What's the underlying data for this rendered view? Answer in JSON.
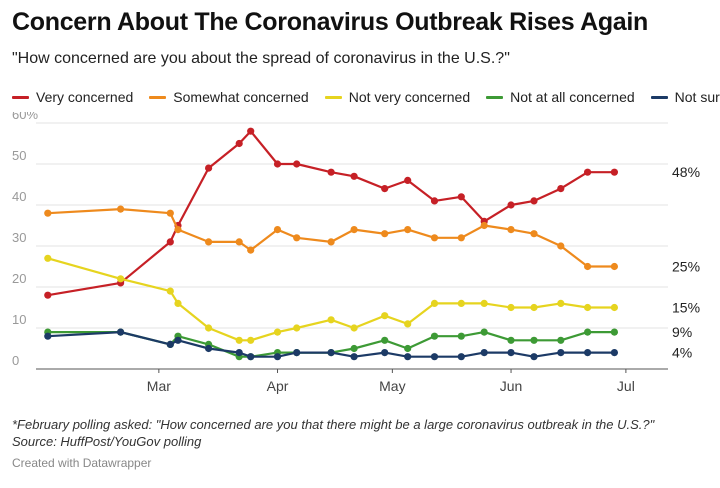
{
  "header": {
    "title": "Concern About The Coronavirus Outbreak Rises Again",
    "subtitle": "\"How concerned are you about the spread of coronavirus in the U.S.?\""
  },
  "footer": {
    "note": "*February polling asked: \"How concerned are you that there might be a large coronavirus outbreak in the U.S.?\"",
    "source": "Source: HuffPost/YouGov polling",
    "credit": "Created with Datawrapper"
  },
  "chart_data": {
    "type": "line",
    "title": "Concern About The Coronavirus Outbreak Rises Again",
    "subtitle": "\"How concerned are you about the spread of coronavirus in the U.S.?\"",
    "xlabel": "",
    "ylabel": "",
    "ylim": [
      0,
      60
    ],
    "y_ticks": [
      0,
      10,
      20,
      30,
      40,
      50,
      60
    ],
    "y_tick_labels": [
      "0",
      "10",
      "20",
      "30",
      "40",
      "50",
      "60%"
    ],
    "grid": true,
    "legend_position": "top",
    "x_tick_labels": [
      {
        "label": "Mar",
        "day": 29
      },
      {
        "label": "Apr",
        "day": 60
      },
      {
        "label": "May",
        "day": 90
      },
      {
        "label": "Jun",
        "day": 121
      },
      {
        "label": "Jul",
        "day": 151
      }
    ],
    "x_domain_days": [
      -1,
      162
    ],
    "x_days": [
      0,
      19,
      32,
      34,
      42,
      50,
      53,
      60,
      65,
      74,
      80,
      88,
      94,
      101,
      108,
      114,
      121,
      127,
      134,
      141,
      148
    ],
    "series": [
      {
        "name": "Very concerned",
        "color": "#c62026",
        "end_label": "48%",
        "values": [
          18,
          21,
          31,
          35,
          49,
          55,
          58,
          50,
          50,
          48,
          47,
          44,
          46,
          41,
          42,
          36,
          40,
          41,
          44,
          48,
          48
        ]
      },
      {
        "name": "Somewhat concerned",
        "color": "#ee8a1d",
        "end_label": "25%",
        "values": [
          38,
          39,
          38,
          34,
          31,
          31,
          29,
          34,
          32,
          31,
          34,
          33,
          34,
          32,
          32,
          35,
          34,
          33,
          30,
          25,
          25
        ]
      },
      {
        "name": "Not very concerned",
        "color": "#e6d41f",
        "end_label": "15%",
        "values": [
          27,
          22,
          19,
          16,
          10,
          7,
          7,
          9,
          10,
          12,
          10,
          13,
          11,
          16,
          16,
          16,
          15,
          15,
          16,
          15,
          15
        ]
      },
      {
        "name": "Not at all concerned",
        "color": "#3d9a35",
        "end_label": "9%",
        "values": [
          9,
          9,
          6,
          8,
          6,
          3,
          3,
          4,
          4,
          4,
          5,
          7,
          5,
          8,
          8,
          9,
          7,
          7,
          7,
          9,
          9
        ]
      },
      {
        "name": "Not sure",
        "color": "#1c3a66",
        "end_label": "4%",
        "values": [
          8,
          9,
          6,
          7,
          5,
          4,
          3,
          3,
          4,
          4,
          3,
          4,
          3,
          3,
          3,
          4,
          4,
          3,
          4,
          4,
          4
        ]
      }
    ]
  }
}
